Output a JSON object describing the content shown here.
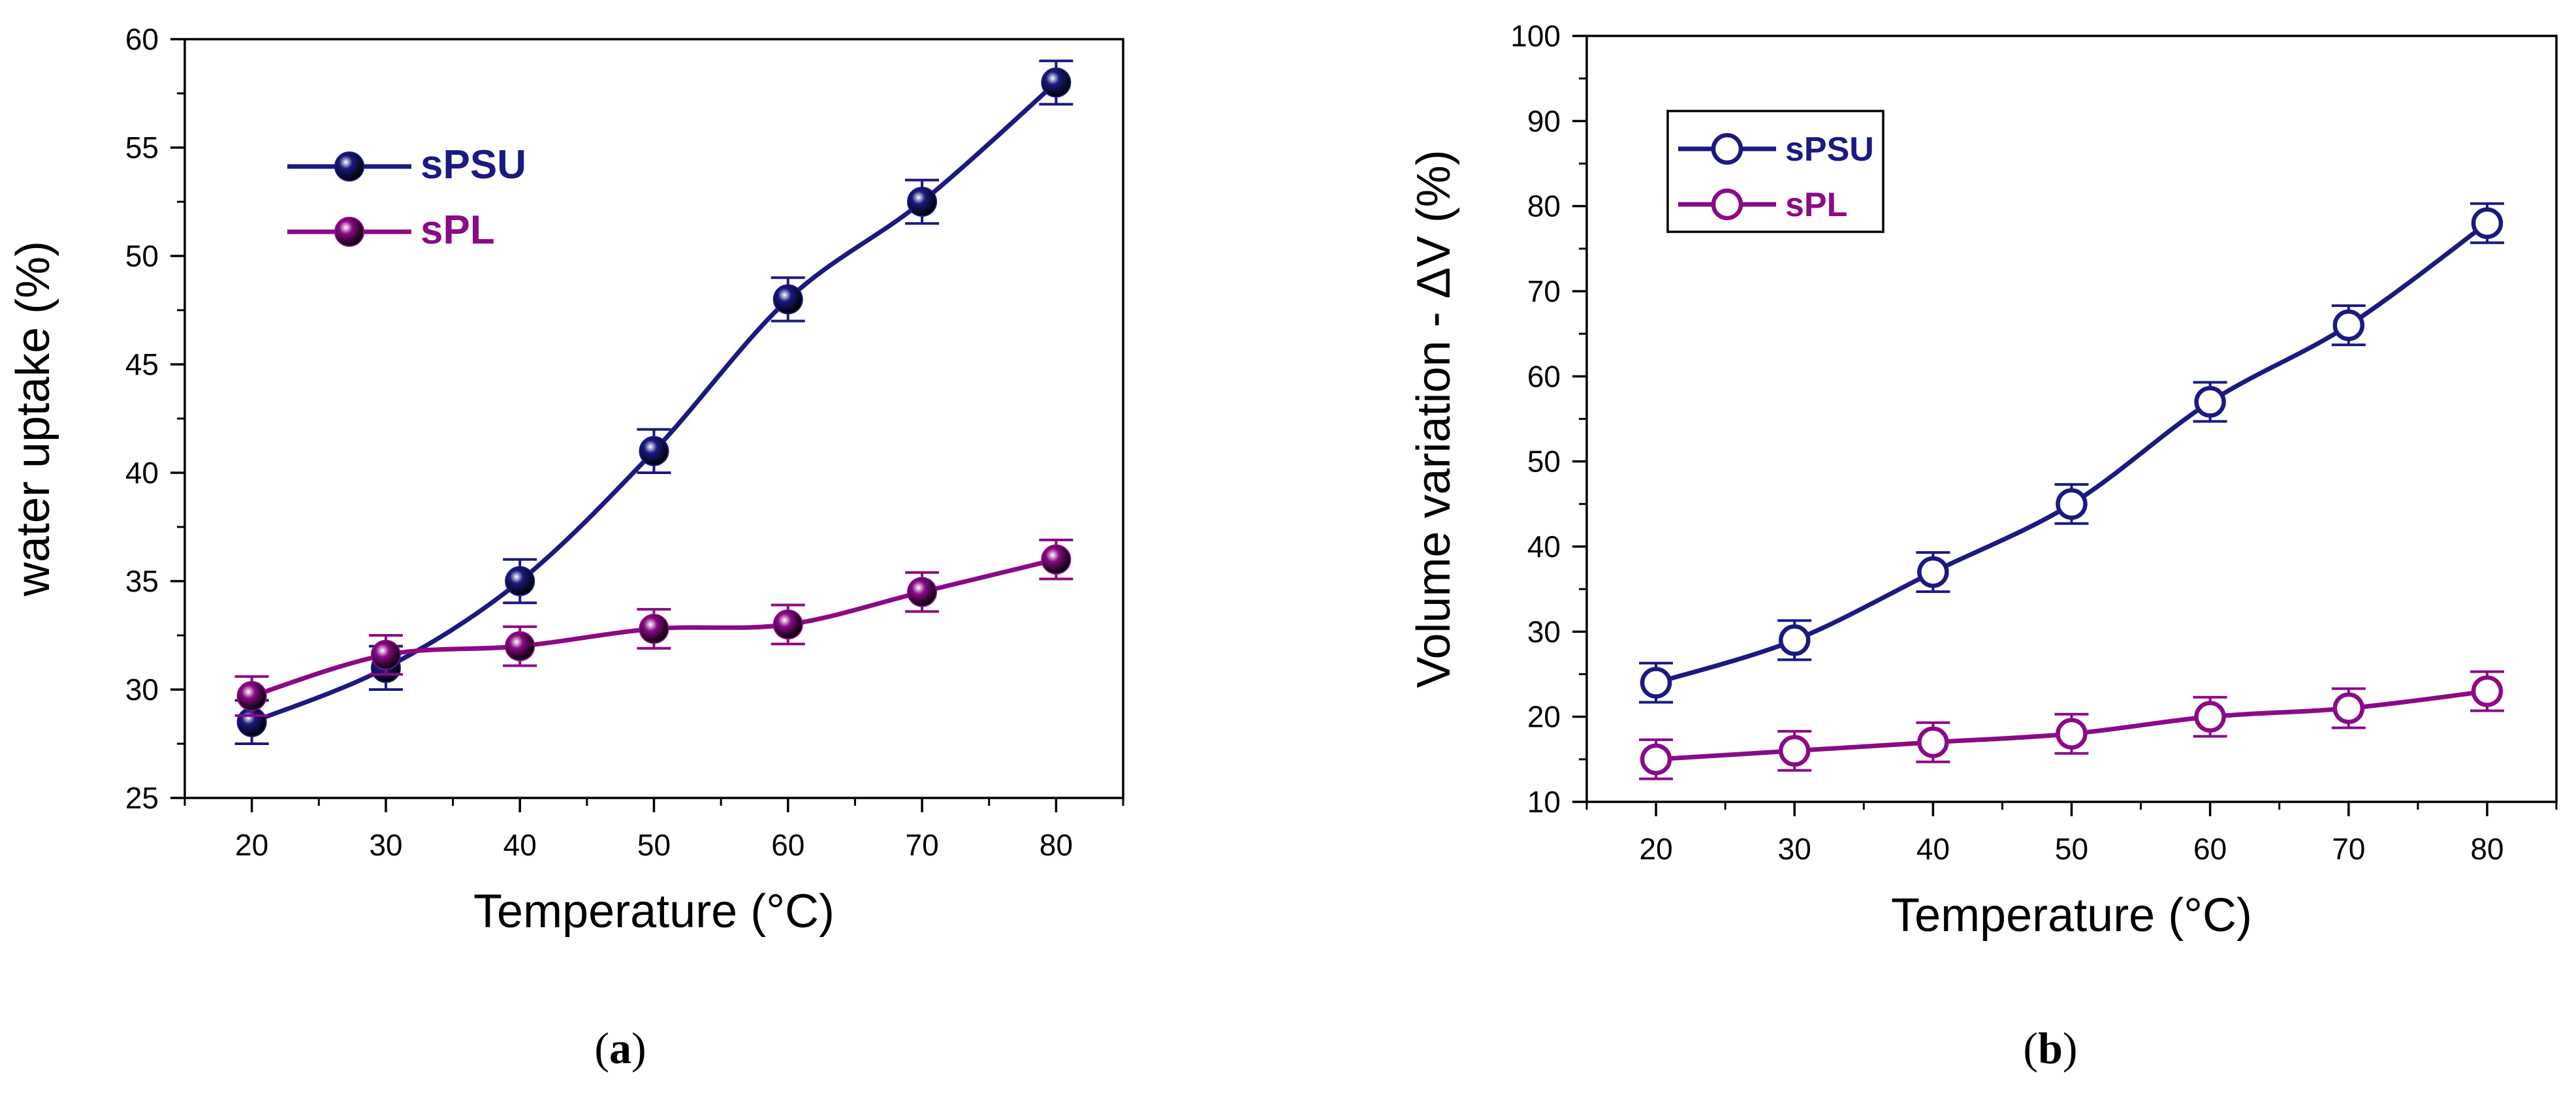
{
  "chart_data": [
    {
      "type": "line",
      "panel": "a",
      "xlabel": "Temperature (°C)",
      "ylabel": "water uptake (%)",
      "xlim": [
        15,
        85
      ],
      "ylim": [
        25,
        60
      ],
      "xticks": [
        20,
        30,
        40,
        50,
        60,
        70,
        80
      ],
      "yticks": [
        25,
        30,
        35,
        40,
        45,
        50,
        55,
        60
      ],
      "marker": "filled-sphere",
      "legend_position": "top-left",
      "series": [
        {
          "name": "sPSU",
          "color": "#1a1a80",
          "x": [
            20,
            30,
            40,
            50,
            60,
            70,
            80
          ],
          "y": [
            28.5,
            31.0,
            35.0,
            41.0,
            48.0,
            52.5,
            58.0
          ],
          "err": [
            1.0,
            1.0,
            1.0,
            1.0,
            1.0,
            1.0,
            1.0
          ]
        },
        {
          "name": "sPL",
          "color": "#8b0a86",
          "x": [
            20,
            30,
            40,
            50,
            60,
            70,
            80
          ],
          "y": [
            29.7,
            31.6,
            32.0,
            32.8,
            33.0,
            34.5,
            36.0
          ],
          "err": [
            0.9,
            0.9,
            0.9,
            0.9,
            0.9,
            0.9,
            0.9
          ]
        }
      ]
    },
    {
      "type": "line",
      "panel": "b",
      "xlabel": "Temperature (°C)",
      "ylabel": "Volume variation - ΔV (%)",
      "xlim": [
        15,
        85
      ],
      "ylim": [
        10,
        100
      ],
      "xticks": [
        20,
        30,
        40,
        50,
        60,
        70,
        80
      ],
      "yticks": [
        10,
        20,
        30,
        40,
        50,
        60,
        70,
        80,
        90,
        100
      ],
      "marker": "open-circle",
      "legend_position": "top-left",
      "legend_boxed": true,
      "series": [
        {
          "name": "sPSU",
          "color": "#1a1a80",
          "x": [
            20,
            30,
            40,
            50,
            60,
            70,
            80
          ],
          "y": [
            24,
            29,
            37,
            45,
            57,
            66,
            78
          ],
          "err": [
            2.3,
            2.3,
            2.3,
            2.3,
            2.3,
            2.3,
            2.3
          ]
        },
        {
          "name": "sPL",
          "color": "#8b0a86",
          "x": [
            20,
            30,
            40,
            50,
            60,
            70,
            80
          ],
          "y": [
            15,
            16,
            17,
            18,
            20,
            21,
            23
          ],
          "err": [
            2.3,
            2.3,
            2.3,
            2.3,
            2.3,
            2.3,
            2.3
          ]
        }
      ]
    }
  ],
  "captions": {
    "a": "a",
    "b": "b"
  }
}
